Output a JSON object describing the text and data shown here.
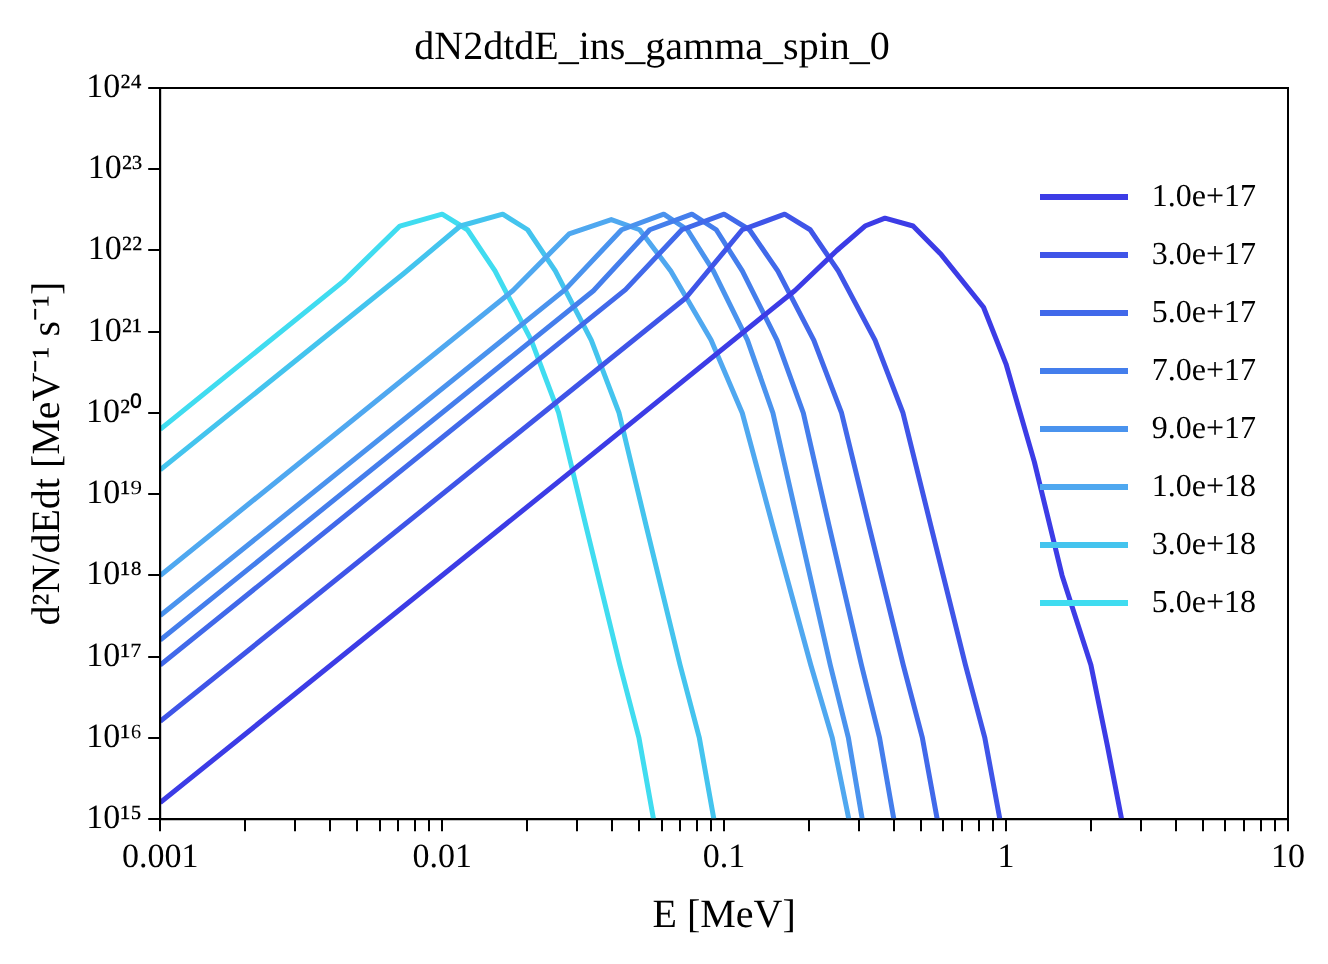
{
  "chart_data": {
    "type": "line",
    "title": "dN2dtdE_ins_gamma_spin_0",
    "xlabel": "E [MeV]",
    "ylabel": "d²N/dEdt [MeV⁻¹ s⁻¹]",
    "log": "xy",
    "grid": false,
    "legend": "top right",
    "marker": "none",
    "line_style": "solid",
    "xlim": [
      0.001,
      10
    ],
    "ylim": [
      1000000000000000.0,
      1e+24
    ],
    "xticks": [
      0.001,
      {
        "value": 0.002,
        "label": null
      },
      {
        "value": 0.003,
        "label": null
      },
      {
        "value": 0.004,
        "label": null
      },
      {
        "value": 0.005,
        "label": null
      },
      {
        "value": 0.006,
        "label": null
      },
      {
        "value": 0.007,
        "label": null
      },
      {
        "value": 0.008,
        "label": null
      },
      {
        "value": 0.009,
        "label": null
      },
      0.01,
      {
        "value": 0.02,
        "label": null
      },
      {
        "value": 0.03,
        "label": null
      },
      {
        "value": 0.04,
        "label": null
      },
      {
        "value": 0.05,
        "label": null
      },
      {
        "value": 0.06,
        "label": null
      },
      {
        "value": 0.07,
        "label": null
      },
      {
        "value": 0.08,
        "label": null
      },
      {
        "value": 0.09,
        "label": null
      },
      0.1,
      {
        "value": 0.2,
        "label": null
      },
      {
        "value": 0.3,
        "label": null
      },
      {
        "value": 0.4,
        "label": null
      },
      {
        "value": 0.5,
        "label": null
      },
      {
        "value": 0.6,
        "label": null
      },
      {
        "value": 0.7,
        "label": null
      },
      {
        "value": 0.8,
        "label": null
      },
      {
        "value": 0.9,
        "label": null
      },
      1,
      {
        "value": 2,
        "label": null
      },
      {
        "value": 3,
        "label": null
      },
      {
        "value": 4,
        "label": null
      },
      {
        "value": 5,
        "label": null
      },
      {
        "value": 6,
        "label": null
      },
      {
        "value": 7,
        "label": null
      },
      {
        "value": 8,
        "label": null
      },
      {
        "value": 9,
        "label": null
      },
      10
    ],
    "yticks": [
      {
        "value": 1000000000000000.0,
        "label": "10¹⁵"
      },
      {
        "value": 1e+16,
        "label": "10¹⁶"
      },
      {
        "value": 1e+17,
        "label": "10¹⁷"
      },
      {
        "value": 1e+18,
        "label": "10¹⁸"
      },
      {
        "value": 1e+19,
        "label": "10¹⁹"
      },
      {
        "value": 1e+20,
        "label": "10²⁰"
      },
      {
        "value": 1e+21,
        "label": "10²¹"
      },
      {
        "value": 1e+22,
        "label": "10²²"
      },
      {
        "value": 1e+23,
        "label": "10²³"
      },
      {
        "value": 1e+24,
        "label": "10²⁴"
      }
    ],
    "series": [
      {
        "name": "1.0e+17",
        "color": "#3c3ce6",
        "x": [
          0.001,
          0.0316,
          0.178,
          0.251,
          0.316,
          0.372,
          0.468,
          0.589,
          0.832,
          1,
          1.26,
          1.58,
          2.0,
          2.29,
          2.57
        ],
        "values": [
          1600000000000000.0,
          2.5e+19,
          3.2e+21,
          1e+22,
          2e+22,
          2.5e+22,
          2e+22,
          8.9e+21,
          2e+21,
          4e+20,
          2.5e+19,
          1e+18,
          7.9e+16,
          7900000000000000.0,
          1000000000000000.0
        ]
      },
      {
        "name": "3.0e+17",
        "color": "#3f55e8",
        "x": [
          0.001,
          0.0731,
          0.116,
          0.164,
          0.202,
          0.254,
          0.343,
          0.431,
          0.542,
          0.718,
          0.841,
          0.951
        ],
        "values": [
          1.6e+16,
          2.6e+21,
          1.8e+22,
          2.8e+22,
          1.8e+22,
          5.6e+21,
          7.9e+20,
          1e+20,
          4e+18,
          7.9e+16,
          1e+16,
          1000000000000000.0
        ]
      },
      {
        "name": "5.0e+17",
        "color": "#4169ea",
        "x": [
          0.001,
          0.0447,
          0.0708,
          0.1,
          0.123,
          0.155,
          0.208,
          0.261,
          0.327,
          0.432,
          0.505,
          0.57
        ],
        "values": [
          7.9e+16,
          3.3e+21,
          1.8e+22,
          2.8e+22,
          1.8e+22,
          5.6e+21,
          7.9e+20,
          1e+20,
          4e+18,
          7.9e+16,
          1e+16,
          1000000000000000.0
        ]
      },
      {
        "name": "7.0e+17",
        "color": "#447eec",
        "x": [
          0.001,
          0.0344,
          0.0545,
          0.0769,
          0.0938,
          0.116,
          0.154,
          0.191,
          0.236,
          0.307,
          0.356,
          0.4
        ],
        "values": [
          1.6e+17,
          3.2e+21,
          1.8e+22,
          2.8e+22,
          1.8e+22,
          5.6e+21,
          7.9e+20,
          1e+20,
          4e+18,
          7.9e+16,
          1e+16,
          1000000000000000.0
        ]
      },
      {
        "name": "9.0e+17",
        "color": "#4a93ee",
        "x": [
          0.001,
          0.0273,
          0.0433,
          0.0611,
          0.0741,
          0.0916,
          0.121,
          0.149,
          0.184,
          0.238,
          0.276,
          0.309
        ],
        "values": [
          3.2e+17,
          3.3e+21,
          1.8e+22,
          2.8e+22,
          1.8e+22,
          5.6e+21,
          7.9e+20,
          1e+20,
          4e+18,
          7.9e+16,
          1e+16,
          1000000000000000.0
        ]
      },
      {
        "name": "1.0e+18",
        "color": "#4fa8f0",
        "x": [
          0.001,
          0.0178,
          0.0282,
          0.0398,
          0.0502,
          0.0647,
          0.0899,
          0.116,
          0.149,
          0.203,
          0.242,
          0.277
        ],
        "values": [
          1e+18,
          3.2e+21,
          1.6e+22,
          2.4e+22,
          1.8e+22,
          5.6e+21,
          7.9e+20,
          1e+20,
          4e+18,
          7.9e+16,
          1e+16,
          1000000000000000.0
        ]
      },
      {
        "name": "3.0e+18",
        "color": "#44c4ee",
        "x": [
          0.001,
          0.00731,
          0.0116,
          0.0164,
          0.0201,
          0.0252,
          0.0338,
          0.0424,
          0.053,
          0.0698,
          0.0817,
          0.092
        ],
        "values": [
          2e+19,
          5.2e+21,
          2e+22,
          2.8e+22,
          1.8e+22,
          5.6e+21,
          7.9e+20,
          1e+20,
          4e+18,
          7.9e+16,
          1e+16,
          1000000000000000.0
        ]
      },
      {
        "name": "5.0e+18",
        "color": "#40dcf0",
        "x": [
          0.001,
          0.00447,
          0.00708,
          0.01,
          0.0123,
          0.0154,
          0.0207,
          0.0259,
          0.0324,
          0.0427,
          0.0499,
          0.0562
        ],
        "values": [
          6.3e+19,
          4.2e+21,
          2e+22,
          2.8e+22,
          1.8e+22,
          5.6e+21,
          7.9e+20,
          1e+20,
          4e+18,
          7.9e+16,
          1e+16,
          1000000000000000.0
        ]
      }
    ]
  }
}
